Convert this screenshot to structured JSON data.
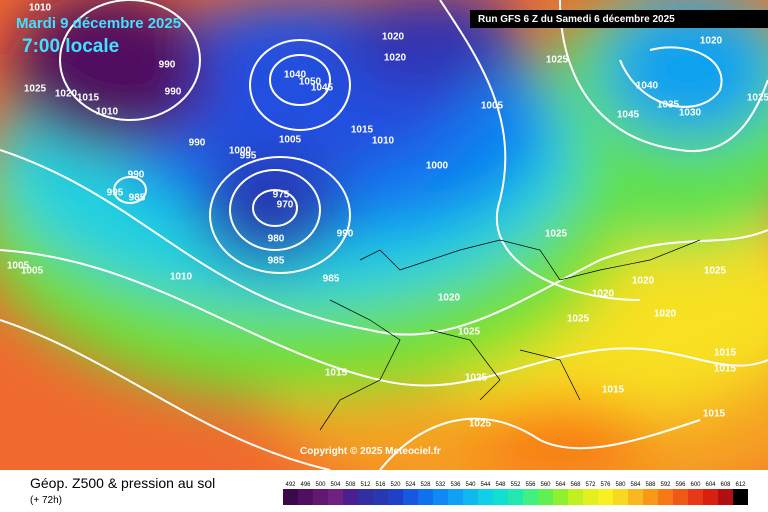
{
  "header": {
    "date": "Mardi 9 décembre 2025",
    "time": "7:00 locale",
    "run": "Run GFS 6 Z du Samedi 6 décembre 2025",
    "copyright": "Copyright © 2025 Meteociel.fr"
  },
  "footer": {
    "title": "Géop. Z500 & pression au sol",
    "lead": "(+ 72h)"
  },
  "legend": {
    "values": [
      492,
      496,
      500,
      504,
      508,
      512,
      516,
      520,
      524,
      528,
      532,
      536,
      540,
      544,
      548,
      552,
      556,
      560,
      564,
      568,
      572,
      576,
      580,
      584,
      588,
      592,
      596,
      600,
      604,
      608,
      612
    ],
    "colors": [
      "#3a0a4a",
      "#501060",
      "#601870",
      "#702080",
      "#4a2090",
      "#3030a0",
      "#2838b0",
      "#2040c8",
      "#1858e0",
      "#1070f0",
      "#1088f8",
      "#10a0f8",
      "#10b8f0",
      "#10d0e8",
      "#10e0d0",
      "#20e8b0",
      "#40f080",
      "#60f050",
      "#90f030",
      "#c0f020",
      "#e0f020",
      "#f8f020",
      "#f8d820",
      "#f8b820",
      "#f89818",
      "#f87818",
      "#f05818",
      "#e83818",
      "#d82010",
      "#b01010",
      "#000000"
    ]
  },
  "isobar_labels": [
    1010,
    1025,
    1020,
    1015,
    1010,
    990,
    990,
    990,
    990,
    995,
    985,
    1005,
    1005,
    1010,
    1000,
    995,
    1005,
    975,
    970,
    980,
    985,
    990,
    985,
    1015,
    1010,
    1000,
    1005,
    1020,
    1020,
    1025,
    1040,
    1035,
    1030,
    1045,
    1020,
    1025,
    1020,
    1025,
    1025,
    1020,
    1020,
    1020,
    1025,
    1015,
    1025,
    1025,
    1015,
    1015,
    1015,
    1015,
    1050,
    1045,
    1040,
    1025
  ]
}
